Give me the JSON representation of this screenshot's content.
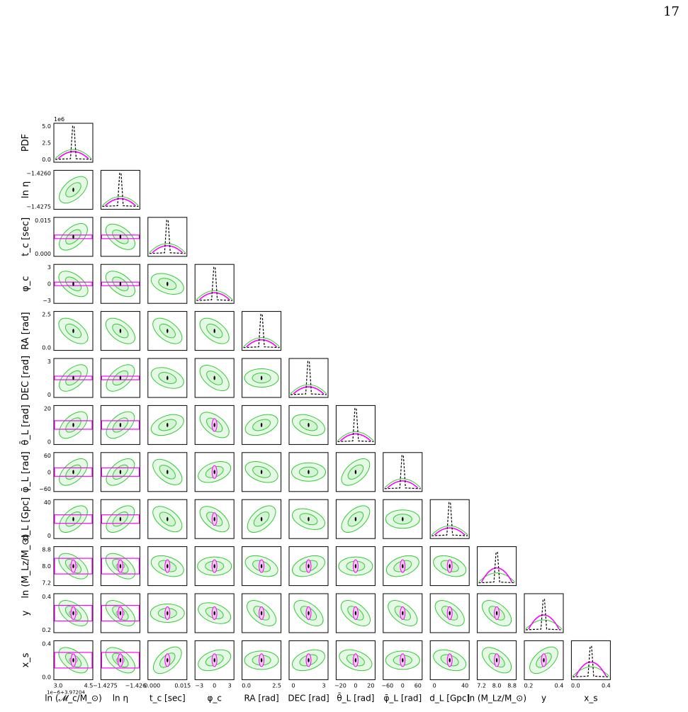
{
  "page_number": "17",
  "figure": {
    "colors": {
      "green_ellipse": "#33cc33",
      "green_fill": "#e6f8e6",
      "magenta": "#ff00ff",
      "dashed": "#000000",
      "gray_fill": "#cfcfcf"
    },
    "row_labels": [
      "PDF",
      "ln η",
      "t_c [sec]",
      "φ_c",
      "RA [rad]",
      "DEC [rad]",
      "θ̄_L [rad]",
      "φ̄_L [rad]",
      "d_L [Gpc]",
      "ln (M_Lz/M_⊙)",
      "y",
      "x_s"
    ],
    "col_labels": [
      "ln (𝓜_c/M_⊙)",
      "ln η",
      "t_c [sec]",
      "φ_c",
      "RA [rad]",
      "DEC [rad]",
      "θ̄_L [rad]",
      "φ̄_L [rad]",
      "d_L [Gpc]",
      "ln (M_Lz/M_⊙)",
      "y",
      "x_s"
    ],
    "pdf_offset": "1e6",
    "x_offset": "1e−6+3.97204",
    "y_ticks": [
      [
        "0.0",
        "2.5",
        "5.0"
      ],
      [
        "−1.4275",
        "−1.4260"
      ],
      [
        "0.000",
        "0.015"
      ],
      [
        "−3",
        "0",
        "3"
      ],
      [
        "0.0",
        "2.5"
      ],
      [
        "0",
        "3"
      ],
      [
        "0",
        "20"
      ],
      [
        "−60",
        "0",
        "60"
      ],
      [
        "0",
        "40"
      ],
      [
        "7.2",
        "8.0",
        "8.8"
      ],
      [
        "0.2",
        "0.4"
      ],
      [
        "0.0",
        "0.4"
      ]
    ],
    "x_ticks": [
      [
        "3.0",
        "4.5"
      ],
      [
        "−1.4275",
        "−1.426"
      ],
      [
        "0.000",
        "0.015"
      ],
      [
        "−3",
        "0",
        "3"
      ],
      [
        "0.0",
        "2.5"
      ],
      [
        "0",
        "3"
      ],
      [
        "−20",
        "0",
        "20"
      ],
      [
        "−60",
        "0",
        "60"
      ],
      [
        "0",
        "40"
      ],
      [
        "7.2",
        "8.0",
        "8.8"
      ],
      [
        "0.2",
        "0.4"
      ],
      [
        "0.0",
        "0.4"
      ]
    ]
  }
}
